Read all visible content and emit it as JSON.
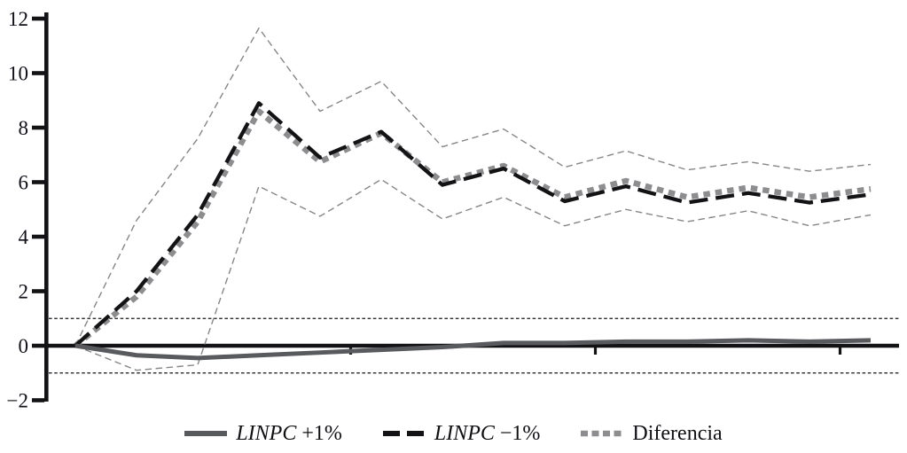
{
  "chart_data": {
    "type": "line",
    "title": "",
    "xlabel": "",
    "ylabel": "",
    "x": [
      1,
      2,
      3,
      4,
      5,
      6,
      7,
      8,
      9,
      10,
      11,
      12,
      13,
      14
    ],
    "ylim": [
      -2,
      12
    ],
    "yticks": [
      -2,
      0,
      2,
      4,
      6,
      8,
      10,
      12
    ],
    "ytick_labels": [
      "−2",
      "0",
      "2",
      "4",
      "6",
      "8",
      "10",
      "12"
    ],
    "xticks_unlabeled": [
      5.5,
      9.5,
      13.5
    ],
    "reference_lines": [
      1,
      -1
    ],
    "zero_line": 0,
    "grid": false,
    "legend_position": "bottom",
    "series": [
      {
        "name": "confidence band upper",
        "style": "band",
        "in_legend": false,
        "values": [
          0,
          4.6,
          7.6,
          11.65,
          8.6,
          9.7,
          7.3,
          7.95,
          6.55,
          7.15,
          6.45,
          6.75,
          6.4,
          6.65
        ]
      },
      {
        "name": "confidence band lower",
        "style": "band",
        "in_legend": false,
        "values": [
          0,
          -0.9,
          -0.7,
          5.85,
          4.75,
          6.1,
          4.65,
          5.45,
          4.4,
          5.0,
          4.55,
          4.95,
          4.4,
          4.8
        ]
      },
      {
        "name": "Diferencia",
        "style": "dashed-gray",
        "in_legend": true,
        "values": [
          0,
          1.8,
          4.55,
          8.6,
          6.75,
          7.8,
          6.0,
          6.6,
          5.45,
          6.05,
          5.45,
          5.8,
          5.45,
          5.75
        ]
      },
      {
        "name": "LINPC −1%",
        "style": "dashed-black",
        "in_legend": true,
        "values": [
          0,
          2.0,
          4.8,
          8.9,
          6.9,
          7.85,
          5.9,
          6.5,
          5.3,
          5.85,
          5.25,
          5.6,
          5.25,
          5.55
        ]
      },
      {
        "name": "LINPC +1%",
        "style": "solid-gray",
        "in_legend": true,
        "values": [
          0,
          -0.35,
          -0.45,
          -0.35,
          -0.25,
          -0.15,
          -0.05,
          0.1,
          0.1,
          0.15,
          0.15,
          0.2,
          0.15,
          0.2
        ]
      }
    ],
    "legend": [
      {
        "label_italic": "LINPC",
        "label_rest": " +1%",
        "swatch": "solid-gray"
      },
      {
        "label_italic": "LINPC",
        "label_rest": " −1%",
        "swatch": "dashed-black"
      },
      {
        "label_italic": "",
        "label_rest": "Diferencia",
        "swatch": "dashed-gray"
      }
    ]
  },
  "colors": {
    "black": "#131316",
    "text": "#10101a",
    "gray_solid": "#595a5e",
    "gray_dash": "#8d8d90",
    "band": "#868686",
    "background": "#ffffff"
  }
}
